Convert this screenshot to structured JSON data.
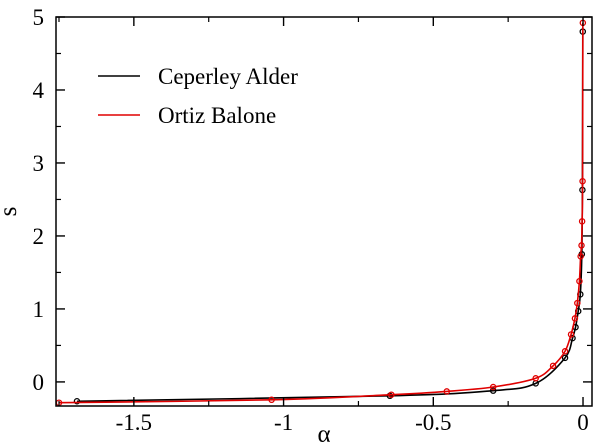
{
  "chart_data": {
    "type": "line",
    "xlabel": "α",
    "ylabel": "s",
    "xlim": [
      -1.76,
      0.03
    ],
    "ylim": [
      -0.33,
      5.0
    ],
    "x_ticks": [
      -1.5,
      -1,
      -0.5,
      0
    ],
    "x_tick_labels": [
      "-1.5",
      "-1",
      "-0.5",
      "0"
    ],
    "y_ticks": [
      0,
      1,
      2,
      3,
      4,
      5
    ],
    "y_tick_labels": [
      "0",
      "1",
      "2",
      "3",
      "4",
      "5"
    ],
    "grid": false,
    "legend_position": "top-left",
    "series": [
      {
        "name": "Ceperley Alder",
        "color": "#000000",
        "x": [
          -1.69,
          -0.645,
          -0.3,
          -0.158,
          -0.06,
          -0.035,
          -0.025,
          -0.016,
          -0.009,
          -0.004,
          -0.002,
          -0.0008
        ],
        "y": [
          -0.265,
          -0.19,
          -0.12,
          -0.02,
          0.33,
          0.6,
          0.75,
          0.97,
          1.2,
          1.75,
          2.63,
          4.8
        ]
      },
      {
        "name": "Ortiz Balone",
        "color": "#e00000",
        "x": [
          -1.75,
          -1.04,
          -0.64,
          -0.455,
          -0.3,
          -0.158,
          -0.1,
          -0.06,
          -0.04,
          -0.027,
          -0.019,
          -0.012,
          -0.008,
          -0.005,
          -0.003,
          -0.0015,
          -0.0006
        ],
        "y": [
          -0.285,
          -0.245,
          -0.175,
          -0.13,
          -0.07,
          0.05,
          0.22,
          0.42,
          0.65,
          0.87,
          1.08,
          1.38,
          1.72,
          1.87,
          2.2,
          2.75,
          4.92
        ]
      }
    ]
  }
}
